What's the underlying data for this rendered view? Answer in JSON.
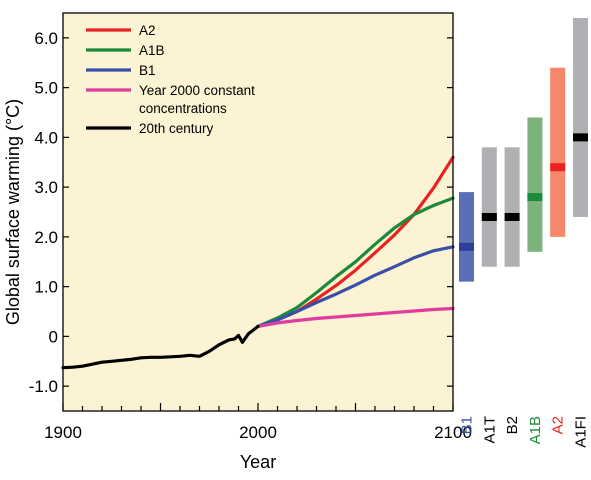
{
  "chart_data": {
    "type": "line",
    "xlabel": "Year",
    "ylabel": "Global surface warming (°C)",
    "xlim": [
      1900,
      2100
    ],
    "ylim": [
      -1.5,
      6.5
    ],
    "x_ticks": [
      1900,
      2000,
      2100
    ],
    "y_ticks": [
      -1.0,
      0,
      1.0,
      2.0,
      3.0,
      4.0,
      5.0,
      6.0
    ],
    "y_tick_labels": [
      "-1.0",
      "0",
      "1.0",
      "2.0",
      "3.0",
      "4.0",
      "5.0",
      "6.0"
    ],
    "background": "#fbf3d3",
    "legend_position": "top-left",
    "series": [
      {
        "name": "A2",
        "color": "#e8231f",
        "x": [
          2000,
          2010,
          2020,
          2030,
          2040,
          2050,
          2060,
          2070,
          2080,
          2090,
          2100
        ],
        "values": [
          0.2,
          0.34,
          0.5,
          0.75,
          1.02,
          1.33,
          1.68,
          2.04,
          2.45,
          2.98,
          3.6
        ]
      },
      {
        "name": "A1B",
        "color": "#1b8a3a",
        "x": [
          2000,
          2010,
          2020,
          2030,
          2040,
          2050,
          2060,
          2070,
          2080,
          2090,
          2100
        ],
        "values": [
          0.2,
          0.37,
          0.58,
          0.88,
          1.2,
          1.5,
          1.85,
          2.18,
          2.45,
          2.63,
          2.78
        ]
      },
      {
        "name": "B1",
        "color": "#3a4fa8",
        "x": [
          2000,
          2010,
          2020,
          2030,
          2040,
          2050,
          2060,
          2070,
          2080,
          2090,
          2100
        ],
        "values": [
          0.2,
          0.33,
          0.5,
          0.68,
          0.85,
          1.03,
          1.23,
          1.4,
          1.58,
          1.72,
          1.8
        ]
      },
      {
        "name": "Year 2000 constant concentrations",
        "legend_lines": [
          "Year 2000 constant",
          "concentrations"
        ],
        "color": "#e03c9f",
        "x": [
          2000,
          2010,
          2020,
          2030,
          2040,
          2050,
          2060,
          2070,
          2080,
          2090,
          2100
        ],
        "values": [
          0.2,
          0.27,
          0.32,
          0.36,
          0.39,
          0.42,
          0.45,
          0.48,
          0.51,
          0.54,
          0.56
        ]
      },
      {
        "name": "20th century",
        "color": "#000000",
        "x": [
          1900,
          1905,
          1910,
          1915,
          1920,
          1925,
          1930,
          1935,
          1940,
          1945,
          1950,
          1955,
          1960,
          1965,
          1970,
          1975,
          1980,
          1985,
          1988,
          1990,
          1992,
          1995,
          2000
        ],
        "values": [
          -0.63,
          -0.62,
          -0.6,
          -0.56,
          -0.52,
          -0.5,
          -0.48,
          -0.46,
          -0.43,
          -0.42,
          -0.42,
          -0.41,
          -0.4,
          -0.38,
          -0.4,
          -0.3,
          -0.17,
          -0.07,
          -0.05,
          0.02,
          -0.12,
          0.05,
          0.2
        ]
      }
    ],
    "scenario_ranges": [
      {
        "label": "B1",
        "low": 1.1,
        "high": 2.9,
        "best": 1.8,
        "bar_color": "#5a6fb8",
        "best_color": "#2a3f98",
        "label_color": "#3a4fa8"
      },
      {
        "label": "A1T",
        "low": 1.4,
        "high": 3.8,
        "best": 2.4,
        "bar_color": "#b0b0b4",
        "best_color": "#000000",
        "label_color": "#000000"
      },
      {
        "label": "B2",
        "low": 1.4,
        "high": 3.8,
        "best": 2.4,
        "bar_color": "#b0b0b4",
        "best_color": "#000000",
        "label_color": "#000000"
      },
      {
        "label": "A1B",
        "low": 1.7,
        "high": 4.4,
        "best": 2.8,
        "bar_color": "#7db27a",
        "best_color": "#1b8a3a",
        "label_color": "#1b8a3a"
      },
      {
        "label": "A2",
        "low": 2.0,
        "high": 5.4,
        "best": 3.4,
        "bar_color": "#f7876a",
        "best_color": "#e8231f",
        "label_color": "#e8231f"
      },
      {
        "label": "A1FI",
        "low": 2.4,
        "high": 6.4,
        "best": 4.0,
        "bar_color": "#b0b0b4",
        "best_color": "#000000",
        "label_color": "#000000"
      }
    ]
  }
}
